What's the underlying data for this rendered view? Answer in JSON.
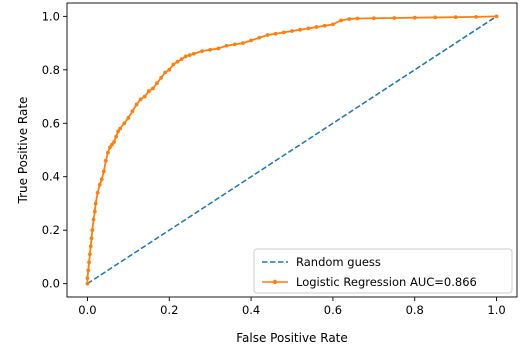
{
  "chart_data": {
    "type": "line",
    "title": "",
    "xlabel": "False Positive Rate",
    "ylabel": "True Positive Rate",
    "xlim": [
      -0.05,
      1.05
    ],
    "ylim": [
      -0.05,
      1.05
    ],
    "xticks": [
      0.0,
      0.2,
      0.4,
      0.6,
      0.8,
      1.0
    ],
    "yticks": [
      0.0,
      0.2,
      0.4,
      0.6,
      0.8,
      1.0
    ],
    "xtick_labels": [
      "0.0",
      "0.2",
      "0.4",
      "0.6",
      "0.8",
      "1.0"
    ],
    "ytick_labels": [
      "0.0",
      "0.2",
      "0.4",
      "0.6",
      "0.8",
      "1.0"
    ],
    "grid": false,
    "legend_position": "lower-right",
    "series": [
      {
        "name": "Random guess",
        "style": "dashed",
        "color": "#1f77b4",
        "x": [
          0.0,
          1.0
        ],
        "y": [
          0.0,
          1.0
        ]
      },
      {
        "name": "Logistic Regression AUC=0.866",
        "style": "solid-with-markers",
        "color": "#ff7f0e",
        "x": [
          0.0,
          0.0,
          0.002,
          0.004,
          0.006,
          0.008,
          0.01,
          0.012,
          0.015,
          0.018,
          0.02,
          0.025,
          0.03,
          0.035,
          0.04,
          0.045,
          0.05,
          0.055,
          0.06,
          0.065,
          0.07,
          0.075,
          0.08,
          0.09,
          0.1,
          0.11,
          0.12,
          0.13,
          0.14,
          0.15,
          0.16,
          0.17,
          0.18,
          0.19,
          0.2,
          0.21,
          0.22,
          0.23,
          0.24,
          0.25,
          0.26,
          0.28,
          0.3,
          0.32,
          0.34,
          0.36,
          0.38,
          0.4,
          0.42,
          0.44,
          0.46,
          0.48,
          0.5,
          0.52,
          0.54,
          0.56,
          0.58,
          0.6,
          0.62,
          0.64,
          0.66,
          0.7,
          0.75,
          0.8,
          0.85,
          0.9,
          0.95,
          1.0
        ],
        "y": [
          0.0,
          0.02,
          0.05,
          0.08,
          0.11,
          0.14,
          0.17,
          0.2,
          0.24,
          0.27,
          0.3,
          0.34,
          0.37,
          0.39,
          0.42,
          0.46,
          0.49,
          0.51,
          0.52,
          0.53,
          0.55,
          0.57,
          0.58,
          0.6,
          0.62,
          0.645,
          0.67,
          0.69,
          0.7,
          0.72,
          0.73,
          0.75,
          0.77,
          0.79,
          0.8,
          0.82,
          0.83,
          0.84,
          0.85,
          0.855,
          0.86,
          0.87,
          0.875,
          0.88,
          0.89,
          0.895,
          0.9,
          0.91,
          0.92,
          0.93,
          0.935,
          0.94,
          0.945,
          0.95,
          0.955,
          0.96,
          0.965,
          0.97,
          0.985,
          0.99,
          0.992,
          0.993,
          0.994,
          0.995,
          0.996,
          0.997,
          0.998,
          1.0
        ]
      }
    ]
  }
}
